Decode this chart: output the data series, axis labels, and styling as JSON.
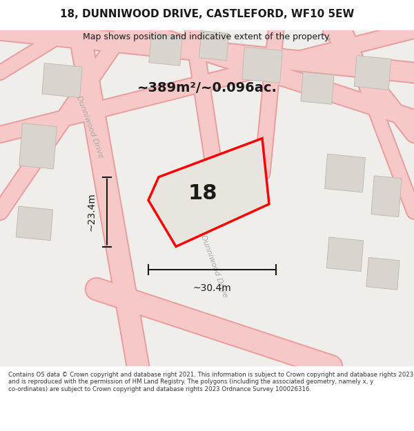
{
  "title": "18, DUNNIWOOD DRIVE, CASTLEFORD, WF10 5EW",
  "subtitle": "Map shows position and indicative extent of the property.",
  "area_label": "~389m²/~0.096ac.",
  "property_number": "18",
  "dim_width": "~30.4m",
  "dim_height": "~23.4m",
  "street_label_1": "Dunniwood Drive",
  "street_label_2": "Dunniwood Drive",
  "footer": "Contains OS data © Crown copyright and database right 2021. This information is subject to Crown copyright and database rights 2023 and is reproduced with the permission of HM Land Registry. The polygons (including the associated geometry, namely x, y co-ordinates) are subject to Crown copyright and database rights 2023 Ordnance Survey 100026316.",
  "bg_color": "#f5f4f2",
  "map_bg": "#f0eeeb",
  "road_color": "#f7c8c8",
  "road_outline": "#e8a0a0",
  "building_fill": "#d9d5ce",
  "building_outline": "#c0bbb2",
  "property_fill": "#e8e4de",
  "property_outline": "#ff0000",
  "dim_line_color": "#1a1a1a",
  "label_color": "#1a1a1a",
  "footer_color": "#333333",
  "title_color": "#1a1a1a"
}
